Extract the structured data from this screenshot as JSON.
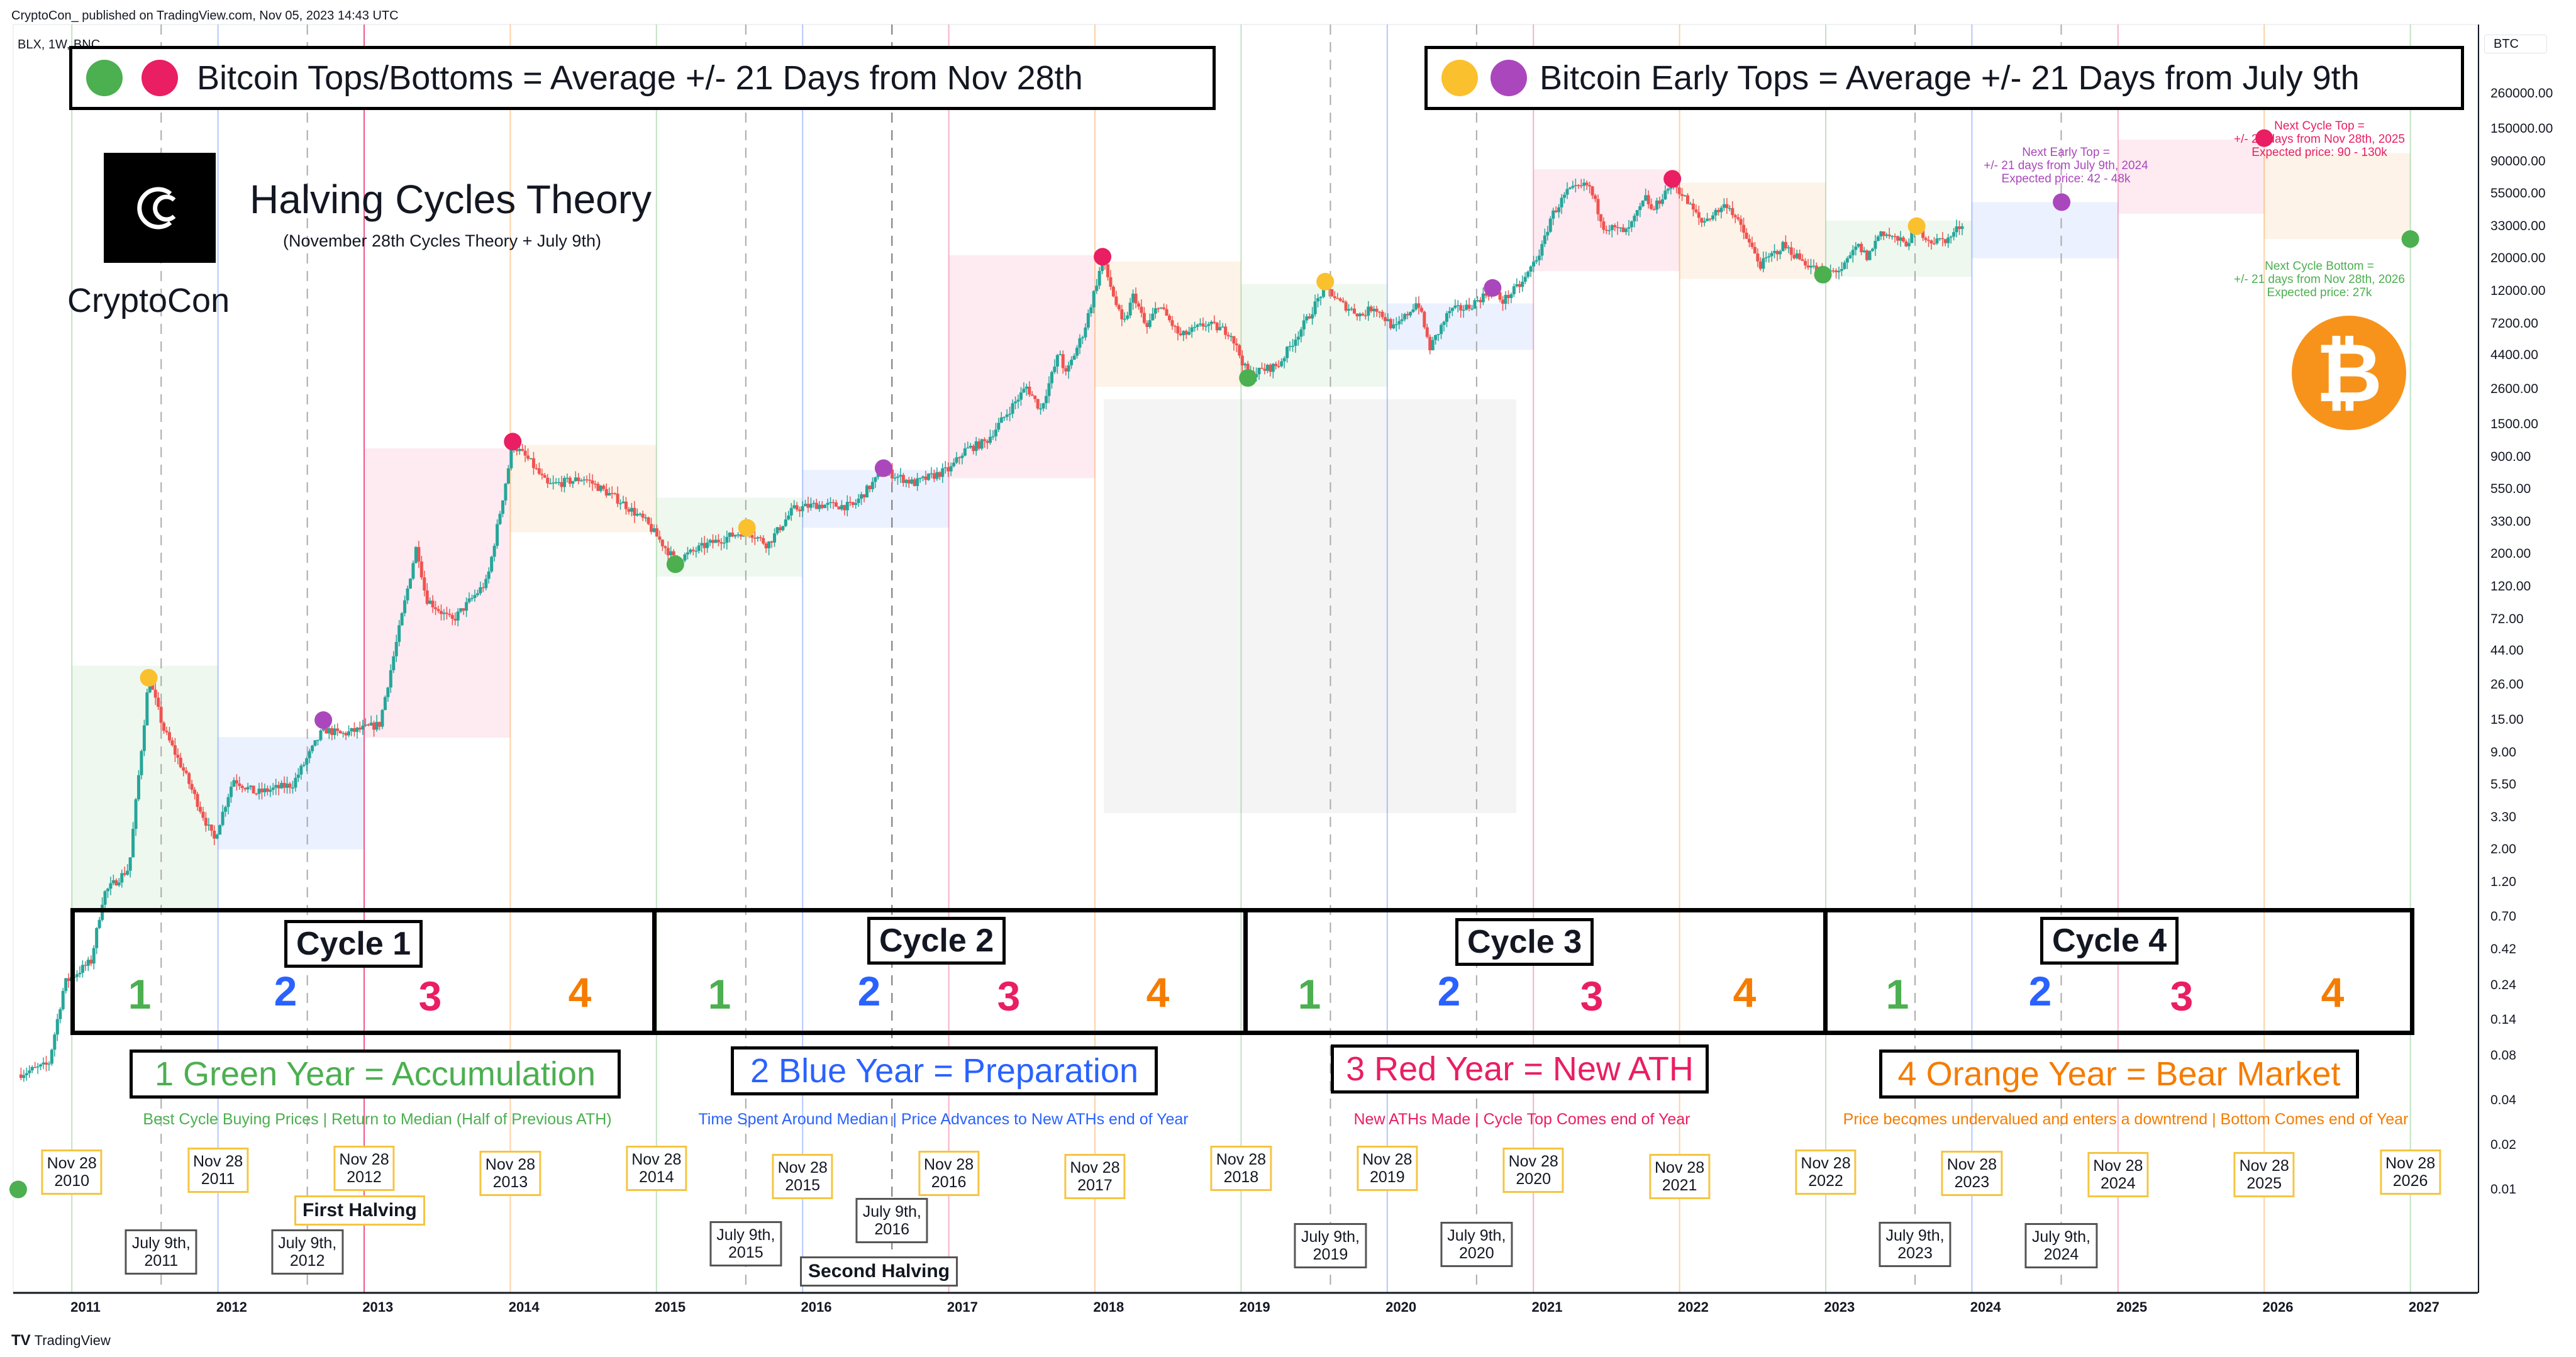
{
  "header": {
    "publisher": "CryptoCon_ published on TradingView.com, Nov 05, 2023 14:43 UTC",
    "symbol": "BLX, 1W, BNC"
  },
  "legend": {
    "left": "Bitcoin Tops/Bottoms = Average +/- 21 Days from Nov 28th",
    "right": "Bitcoin  Early Tops = Average +/- 21 Days from July 9th"
  },
  "branding": {
    "title": "Halving Cycles Theory",
    "subtitle": "(November 28th Cycles Theory + July 9th)",
    "name": "CryptoCon",
    "logo_text": "CC",
    "footer": "TradingView",
    "footer_mark": "TV"
  },
  "colors": {
    "green": "#4caf50",
    "blue": "#2962ff",
    "red": "#e91e63",
    "orange": "#f57c00",
    "yellow": "#fbc02d",
    "purple": "#ab47bc",
    "bitcoin": "#f7931a",
    "up": "#26a69a",
    "down": "#ef5350"
  },
  "cycles": [
    {
      "label": "Cycle 1",
      "numbers": [
        "1",
        "2",
        "3",
        "4"
      ]
    },
    {
      "label": "Cycle 2",
      "numbers": [
        "1",
        "2",
        "3",
        "4"
      ]
    },
    {
      "label": "Cycle 3",
      "numbers": [
        "1",
        "2",
        "3",
        "4"
      ]
    },
    {
      "label": "Cycle 4",
      "numbers": [
        "1",
        "2",
        "3",
        "4"
      ]
    }
  ],
  "years": [
    {
      "title": "1 Green Year = Accumulation",
      "desc": "Best Cycle Buying Prices | Return to Median (Half of Previous ATH)"
    },
    {
      "title": "2 Blue Year = Preparation",
      "desc": "Time Spent Around Median | Price Advances to New ATHs end of Year"
    },
    {
      "title": "3 Red Year = New ATH",
      "desc": "New ATHs Made | Cycle Top Comes end of Year"
    },
    {
      "title": "4 Orange Year = Bear Market",
      "desc": "Price becomes undervalued and enters a downtrend | Bottom Comes end of Year"
    }
  ],
  "nov_labels": [
    "Nov 28\n2010",
    "Nov 28\n2011",
    "Nov 28\n2012",
    "Nov 28\n2013",
    "Nov 28\n2014",
    "Nov 28\n2015",
    "Nov 28\n2016",
    "Nov 28\n2017",
    "Nov 28\n2018",
    "Nov 28\n2019",
    "Nov 28\n2020",
    "Nov 28\n2021",
    "Nov 28\n2022",
    "Nov 28\n2023",
    "Nov 28\n2024",
    "Nov 28\n2025",
    "Nov 28\n2026"
  ],
  "july_labels": [
    "July 9th,\n2011",
    "July 9th,\n2012",
    "July 9th,\n2015",
    "July 9th,\n2016",
    "July 9th,\n2019",
    "July 9th,\n2020",
    "July 9th,\n2023",
    "July 9th,\n2024"
  ],
  "halvings": {
    "first": "First Halving",
    "second": "Second Halving"
  },
  "notes": {
    "early_top": "Next Early Top =\n+/- 21 days from July 9th, 2024\nExpected price: 42 - 48k",
    "cycle_top": "Next Cycle Top =\n+/- 21 days from Nov 28th, 2025\nExpected price: 90 - 130k",
    "cycle_bottom": "Next Cycle Bottom =\n+/- 21 days from Nov 28th, 2026\nExpected price: 27k"
  },
  "chart_data": {
    "type": "candlestick",
    "scale": "log",
    "currency": "BTC",
    "interval": "1W",
    "ylim": [
      0.01,
      260000
    ],
    "xlim": [
      "2010-07-01",
      "2027-03-01"
    ],
    "y_ticks": [
      "260000.00",
      "150000.00",
      "90000.00",
      "55000.00",
      "33000.00",
      "20000.00",
      "12000.00",
      "7200.00",
      "4400.00",
      "2600.00",
      "1500.00",
      "900.00",
      "550.00",
      "330.00",
      "200.00",
      "120.00",
      "72.00",
      "44.00",
      "26.00",
      "15.00",
      "9.00",
      "5.50",
      "3.30",
      "2.00",
      "1.20",
      "0.70",
      "0.42",
      "0.24",
      "0.14",
      "0.08",
      "0.04",
      "0.02",
      "0.01"
    ],
    "x_ticks": [
      "2011",
      "2012",
      "2013",
      "2014",
      "2015",
      "2016",
      "2017",
      "2018",
      "2019",
      "2020",
      "2021",
      "2022",
      "2023",
      "2024",
      "2025",
      "2026",
      "2027"
    ],
    "price_path": [
      [
        "2010-07-17",
        0.06
      ],
      [
        "2010-10-01",
        0.07
      ],
      [
        "2010-11-10",
        0.25
      ],
      [
        "2011-01-15",
        0.35
      ],
      [
        "2011-02-15",
        1.0
      ],
      [
        "2011-04-20",
        1.5
      ],
      [
        "2011-06-08",
        29
      ],
      [
        "2011-07-15",
        13
      ],
      [
        "2011-09-01",
        7
      ],
      [
        "2011-11-18",
        2.3
      ],
      [
        "2012-01-05",
        6
      ],
      [
        "2012-03-01",
        4.8
      ],
      [
        "2012-06-01",
        5.5
      ],
      [
        "2012-08-17",
        13
      ],
      [
        "2012-10-01",
        12
      ],
      [
        "2013-01-05",
        14
      ],
      [
        "2013-04-08",
        230
      ],
      [
        "2013-05-01",
        100
      ],
      [
        "2013-07-05",
        70
      ],
      [
        "2013-10-01",
        130
      ],
      [
        "2013-12-04",
        1100
      ],
      [
        "2014-01-15",
        850
      ],
      [
        "2014-03-01",
        580
      ],
      [
        "2014-06-01",
        650
      ],
      [
        "2014-09-01",
        450
      ],
      [
        "2014-11-01",
        330
      ],
      [
        "2015-01-14",
        180
      ],
      [
        "2015-04-01",
        230
      ],
      [
        "2015-07-12",
        290
      ],
      [
        "2015-09-01",
        230
      ],
      [
        "2015-11-04",
        400
      ],
      [
        "2016-01-01",
        430
      ],
      [
        "2016-04-01",
        420
      ],
      [
        "2016-06-17",
        730
      ],
      [
        "2016-09-01",
        600
      ],
      [
        "2016-12-01",
        750
      ],
      [
        "2017-01-05",
        1000
      ],
      [
        "2017-03-01",
        1150
      ],
      [
        "2017-06-10",
        2700
      ],
      [
        "2017-07-15",
        1900
      ],
      [
        "2017-09-01",
        4700
      ],
      [
        "2017-09-15",
        3200
      ],
      [
        "2017-11-01",
        6500
      ],
      [
        "2017-12-17",
        19500
      ],
      [
        "2018-02-06",
        6900
      ],
      [
        "2018-03-05",
        11500
      ],
      [
        "2018-04-05",
        6600
      ],
      [
        "2018-05-05",
        9800
      ],
      [
        "2018-06-29",
        5900
      ],
      [
        "2018-09-01",
        7200
      ],
      [
        "2018-11-01",
        6300
      ],
      [
        "2018-12-15",
        3250
      ],
      [
        "2019-03-01",
        3800
      ],
      [
        "2019-05-15",
        8000
      ],
      [
        "2019-06-26",
        13000
      ],
      [
        "2019-08-01",
        10000
      ],
      [
        "2019-09-25",
        8200
      ],
      [
        "2019-10-26",
        9500
      ],
      [
        "2019-12-17",
        6600
      ],
      [
        "2020-02-12",
        10300
      ],
      [
        "2020-03-13",
        4900
      ],
      [
        "2020-05-01",
        8800
      ],
      [
        "2020-06-15",
        9300
      ],
      [
        "2020-08-17",
        12300
      ],
      [
        "2020-09-10",
        10200
      ],
      [
        "2020-11-01",
        13800
      ],
      [
        "2020-12-20",
        24000
      ],
      [
        "2021-01-10",
        38000
      ],
      [
        "2021-02-20",
        56000
      ],
      [
        "2021-04-14",
        63000
      ],
      [
        "2021-05-23",
        33000
      ],
      [
        "2021-07-20",
        30000
      ],
      [
        "2021-09-06",
        52000
      ],
      [
        "2021-09-20",
        41000
      ],
      [
        "2021-11-10",
        67000
      ],
      [
        "2022-01-22",
        35000
      ],
      [
        "2022-03-28",
        47000
      ],
      [
        "2022-05-12",
        28000
      ],
      [
        "2022-06-18",
        18000
      ],
      [
        "2022-08-14",
        24500
      ],
      [
        "2022-10-01",
        19200
      ],
      [
        "2022-11-21",
        15800
      ],
      [
        "2023-01-10",
        17000
      ],
      [
        "2023-02-15",
        24500
      ],
      [
        "2023-03-12",
        20200
      ],
      [
        "2023-04-14",
        30500
      ],
      [
        "2023-06-15",
        25000
      ],
      [
        "2023-07-13",
        31500
      ],
      [
        "2023-08-20",
        26000
      ],
      [
        "2023-10-01",
        27000
      ],
      [
        "2023-11-05",
        35000
      ]
    ],
    "markers": [
      {
        "date": "2010-07-17",
        "price": 0.01,
        "color": "green",
        "kind": "bottom"
      },
      {
        "date": "2011-06-08",
        "price": 29,
        "color": "yellow",
        "kind": "early-top"
      },
      {
        "date": "2012-08-17",
        "price": 15,
        "color": "purple",
        "kind": "early-top"
      },
      {
        "date": "2013-12-04",
        "price": 1150,
        "color": "red",
        "kind": "top"
      },
      {
        "date": "2015-01-14",
        "price": 170,
        "color": "green",
        "kind": "bottom"
      },
      {
        "date": "2015-07-12",
        "price": 300,
        "color": "yellow",
        "kind": "early-top"
      },
      {
        "date": "2016-06-17",
        "price": 760,
        "color": "purple",
        "kind": "early-top"
      },
      {
        "date": "2017-12-17",
        "price": 20500,
        "color": "red",
        "kind": "top"
      },
      {
        "date": "2018-12-15",
        "price": 3100,
        "color": "green",
        "kind": "bottom"
      },
      {
        "date": "2019-06-26",
        "price": 13900,
        "color": "yellow",
        "kind": "early-top"
      },
      {
        "date": "2020-08-17",
        "price": 12600,
        "color": "purple",
        "kind": "early-top"
      },
      {
        "date": "2021-11-10",
        "price": 69000,
        "color": "red",
        "kind": "top"
      },
      {
        "date": "2022-11-21",
        "price": 15500,
        "color": "green",
        "kind": "bottom"
      },
      {
        "date": "2023-07-13",
        "price": 33000,
        "color": "yellow",
        "kind": "early-top"
      },
      {
        "date": "2024-07-09",
        "price": 48000,
        "color": "purple",
        "kind": "projected-early-top"
      },
      {
        "date": "2025-11-28",
        "price": 130000,
        "color": "red",
        "kind": "projected-top"
      },
      {
        "date": "2026-11-28",
        "price": 27000,
        "color": "green",
        "kind": "projected-bottom"
      }
    ],
    "year_zones": [
      {
        "from": "2010-11-28",
        "to": "2011-11-28",
        "low": 0.8,
        "high": 35,
        "color": "green"
      },
      {
        "from": "2011-11-28",
        "to": "2012-11-28",
        "low": 2,
        "high": 11.5,
        "color": "blue"
      },
      {
        "from": "2012-11-28",
        "to": "2013-11-28",
        "low": 11.4,
        "high": 1035,
        "color": "red"
      },
      {
        "from": "2013-11-28",
        "to": "2014-11-28",
        "low": 280,
        "high": 1090,
        "color": "orange"
      },
      {
        "from": "2014-11-28",
        "to": "2015-11-28",
        "low": 140,
        "high": 480,
        "color": "green"
      },
      {
        "from": "2015-11-28",
        "to": "2016-11-28",
        "low": 300,
        "high": 740,
        "color": "blue"
      },
      {
        "from": "2016-11-28",
        "to": "2017-11-28",
        "low": 650,
        "high": 21000,
        "color": "red"
      },
      {
        "from": "2017-11-28",
        "to": "2018-11-28",
        "low": 2700,
        "high": 19000,
        "color": "orange"
      },
      {
        "from": "2018-11-28",
        "to": "2019-11-28",
        "low": 2700,
        "high": 13400,
        "color": "green"
      },
      {
        "from": "2019-11-28",
        "to": "2020-11-28",
        "low": 4800,
        "high": 9900,
        "color": "blue"
      },
      {
        "from": "2020-11-28",
        "to": "2021-11-28",
        "low": 16400,
        "high": 80000,
        "color": "red"
      },
      {
        "from": "2021-11-28",
        "to": "2022-11-28",
        "low": 14500,
        "high": 65000,
        "color": "orange"
      },
      {
        "from": "2022-11-28",
        "to": "2023-11-28",
        "low": 15000,
        "high": 36000,
        "color": "green"
      },
      {
        "from": "2023-11-28",
        "to": "2024-11-28",
        "low": 20000,
        "high": 48000,
        "color": "blue"
      },
      {
        "from": "2024-11-28",
        "to": "2025-11-28",
        "low": 40000,
        "high": 127000,
        "color": "red"
      },
      {
        "from": "2025-11-28",
        "to": "2026-11-28",
        "low": 27000,
        "high": 103000,
        "color": "orange"
      }
    ]
  }
}
